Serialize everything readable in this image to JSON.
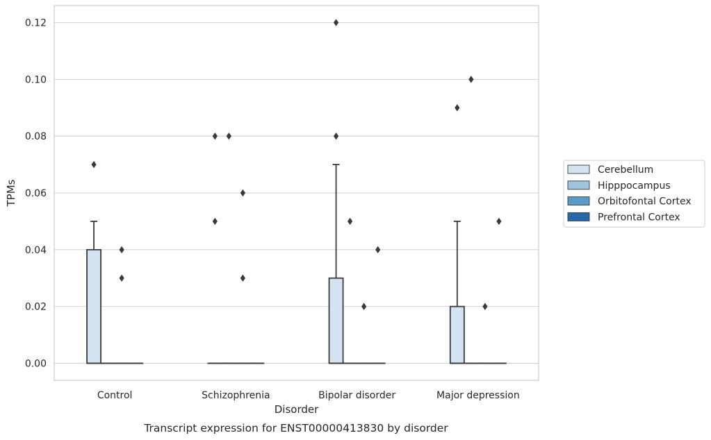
{
  "chart_data": {
    "type": "box",
    "title": "",
    "xlabel": "Disorder",
    "ylabel": "TPMs",
    "caption": "Transcript expression for ENST00000413830 by disorder",
    "categories": [
      "Control",
      "Schizophrenia",
      "Bipolar disorder",
      "Major depression"
    ],
    "yticks": [
      "0.00",
      "0.02",
      "0.04",
      "0.06",
      "0.08",
      "0.10",
      "0.12"
    ],
    "ylim": [
      -0.006,
      0.126
    ],
    "grid": true,
    "legend_position": "right",
    "series": [
      {
        "name": "Cerebellum",
        "color": "#d3e3f2",
        "boxes": [
          {
            "q1": 0.0,
            "median": 0.0,
            "q3": 0.04,
            "whisker_low": 0.0,
            "whisker_high": 0.05,
            "outliers": [
              0.07
            ]
          },
          {
            "q1": 0.0,
            "median": 0.0,
            "q3": 0.0,
            "whisker_low": 0.0,
            "whisker_high": 0.0,
            "outliers": [
              0.05,
              0.08
            ]
          },
          {
            "q1": 0.0,
            "median": 0.0,
            "q3": 0.03,
            "whisker_low": 0.0,
            "whisker_high": 0.07,
            "outliers": [
              0.08,
              0.12
            ]
          },
          {
            "q1": 0.0,
            "median": 0.0,
            "q3": 0.02,
            "whisker_low": 0.0,
            "whisker_high": 0.05,
            "outliers": [
              0.09
            ]
          }
        ]
      },
      {
        "name": "Hipppocampus",
        "color": "#9dc3dd",
        "boxes": [
          {
            "q1": 0.0,
            "median": 0.0,
            "q3": 0.0,
            "whisker_low": 0.0,
            "whisker_high": 0.0,
            "outliers": []
          },
          {
            "q1": 0.0,
            "median": 0.0,
            "q3": 0.0,
            "whisker_low": 0.0,
            "whisker_high": 0.0,
            "outliers": [
              0.08
            ]
          },
          {
            "q1": 0.0,
            "median": 0.0,
            "q3": 0.0,
            "whisker_low": 0.0,
            "whisker_high": 0.0,
            "outliers": [
              0.05
            ]
          },
          {
            "q1": 0.0,
            "median": 0.0,
            "q3": 0.0,
            "whisker_low": 0.0,
            "whisker_high": 0.0,
            "outliers": [
              0.1
            ]
          }
        ]
      },
      {
        "name": "Orbitofontal Cortex",
        "color": "#5a9cc9",
        "boxes": [
          {
            "q1": 0.0,
            "median": 0.0,
            "q3": 0.0,
            "whisker_low": 0.0,
            "whisker_high": 0.0,
            "outliers": [
              0.03,
              0.04
            ]
          },
          {
            "q1": 0.0,
            "median": 0.0,
            "q3": 0.0,
            "whisker_low": 0.0,
            "whisker_high": 0.0,
            "outliers": [
              0.03,
              0.06
            ]
          },
          {
            "q1": 0.0,
            "median": 0.0,
            "q3": 0.0,
            "whisker_low": 0.0,
            "whisker_high": 0.0,
            "outliers": [
              0.02
            ]
          },
          {
            "q1": 0.0,
            "median": 0.0,
            "q3": 0.0,
            "whisker_low": 0.0,
            "whisker_high": 0.0,
            "outliers": [
              0.02
            ]
          }
        ]
      },
      {
        "name": "Prefrontal Cortex",
        "color": "#2767ac",
        "boxes": [
          {
            "q1": 0.0,
            "median": 0.0,
            "q3": 0.0,
            "whisker_low": 0.0,
            "whisker_high": 0.0,
            "outliers": []
          },
          {
            "q1": 0.0,
            "median": 0.0,
            "q3": 0.0,
            "whisker_low": 0.0,
            "whisker_high": 0.0,
            "outliers": []
          },
          {
            "q1": 0.0,
            "median": 0.0,
            "q3": 0.0,
            "whisker_low": 0.0,
            "whisker_high": 0.0,
            "outliers": [
              0.04
            ]
          },
          {
            "q1": 0.0,
            "median": 0.0,
            "q3": 0.0,
            "whisker_low": 0.0,
            "whisker_high": 0.0,
            "outliers": [
              0.05
            ]
          }
        ]
      }
    ]
  }
}
